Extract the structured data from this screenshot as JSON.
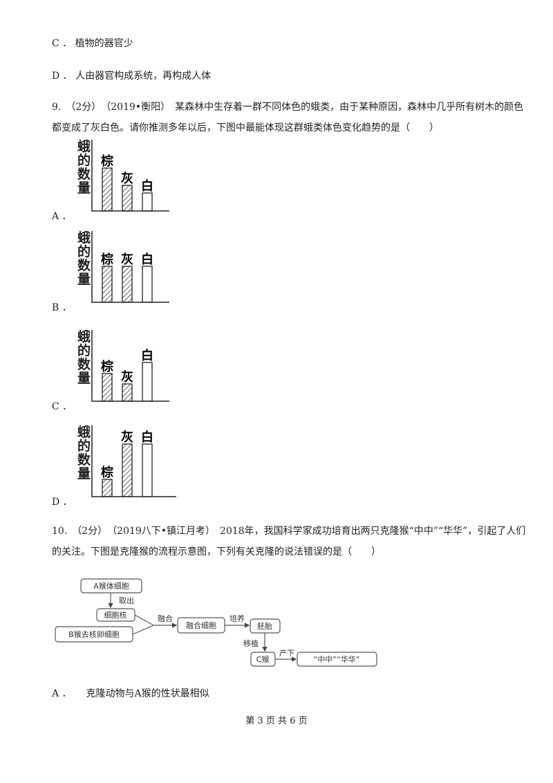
{
  "top_options": {
    "c": "C ． 植物的器官少",
    "d": "D ． 人由器官构成系统，再构成人体"
  },
  "q9": {
    "text": "9.　（2分）　（2019•衡阳）　某森林中生存着一群不同体色的蛾类，由于某种原因，森林中几乎所有树木的颜色都变成了灰白色。请你推测多年以后，下图中最能体现这群蛾类体色变化趋势的是（　　）",
    "charts": [
      {
        "option": "A ．",
        "y_label": "蛾的数量",
        "bars": [
          {
            "label": "棕",
            "value": 62
          },
          {
            "label": "灰",
            "value": 37
          },
          {
            "label": "白",
            "value": 26
          }
        ]
      },
      {
        "option": "B ．",
        "y_label": "蛾的数量",
        "bars": [
          {
            "label": "棕",
            "value": 52
          },
          {
            "label": "灰",
            "value": 52
          },
          {
            "label": "白",
            "value": 52
          }
        ]
      },
      {
        "option": "C ．",
        "y_label": "蛾的数量",
        "bars": [
          {
            "label": "棕",
            "value": 40
          },
          {
            "label": "灰",
            "value": 25
          },
          {
            "label": "白",
            "value": 56
          }
        ]
      },
      {
        "option": "D ．",
        "y_label": "蛾的数量",
        "bars": [
          {
            "label": "棕",
            "value": 25
          },
          {
            "label": "灰",
            "value": 76
          },
          {
            "label": "白",
            "value": 76
          }
        ]
      }
    ]
  },
  "q10": {
    "text": "10.　（2分）　（2019八下•镇江月考）　2018年，我国科学家成功培育出两只克隆猴“中中”“华华”，引起了人们的关注。下图是克隆猴的流程示意图，下列有关克隆的说法错误的是（　　）",
    "diagram": {
      "a_cell": "A猴体细胞",
      "take_out": "取出",
      "nucleus": "细胞核",
      "b_egg": "B猴去核卵细胞",
      "fuse": "融合",
      "fused_cell": "融合细胞",
      "culture": "培养",
      "embryo": "胚胎",
      "transplant": "移植",
      "c_monkey": "C猴",
      "give_birth": "产下",
      "offspring": "“中中”“华华”"
    },
    "option_a": "A ．　　克隆动物与A猴的性状最相似"
  },
  "footer": "第 3 页 共 6 页"
}
